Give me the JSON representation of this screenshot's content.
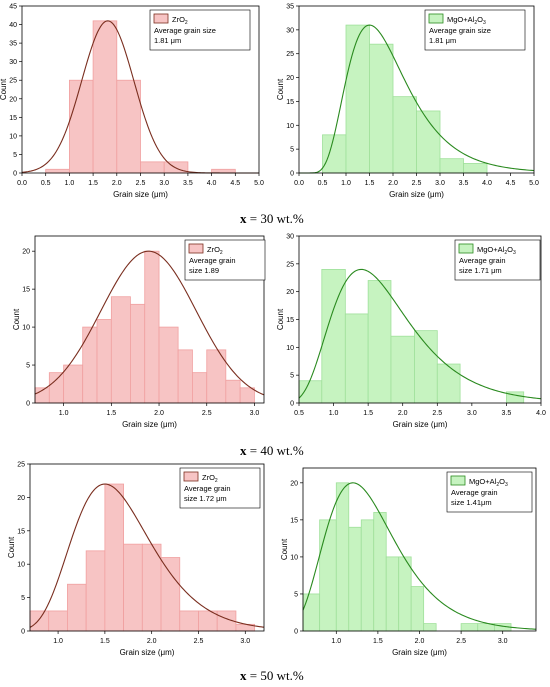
{
  "captions": [
    {
      "var": "x",
      "rest": " = 30 wt.%"
    },
    {
      "var": "x",
      "rest": " = 40 wt.%"
    },
    {
      "var": "x",
      "rest": " = 50 wt.%"
    }
  ],
  "colors": {
    "zro2_fill": "#f7c4c4",
    "zro2_edge": "#f0a0a0",
    "zro2_curve": "#7a2e1f",
    "mgo_fill": "#c6f3c0",
    "mgo_edge": "#9fe09a",
    "mgo_curve": "#2a8a1f",
    "axis": "#000000"
  },
  "chart_data": [
    {
      "type": "histogram",
      "id": "a",
      "xlabel": "Grain size (μm)",
      "ylabel": "Count",
      "xlim": [
        0,
        5.0
      ],
      "ylim": [
        0,
        45
      ],
      "xticks": [
        "0.0",
        "0.5",
        "1.0",
        "1.5",
        "2.0",
        "2.5",
        "3.0",
        "3.5",
        "4.0",
        "4.5",
        "5.0"
      ],
      "yticks": [
        "0",
        "5",
        "10",
        "15",
        "20",
        "25",
        "30",
        "35",
        "40",
        "45"
      ],
      "bin_edges": [
        0.5,
        1.0,
        1.5,
        2.0,
        2.5,
        3.0,
        3.5,
        4.0,
        4.5
      ],
      "counts": [
        1,
        25,
        41,
        25,
        3,
        3,
        0,
        1
      ],
      "fit": {
        "type": "normal",
        "mean": 1.81,
        "sd": 0.55,
        "peak": 41
      },
      "legend": {
        "series": "ZrO",
        "sub": "2",
        "lines": [
          "Average grain size",
          "1.81 μm"
        ]
      },
      "palette": "zro2"
    },
    {
      "type": "histogram",
      "id": "b",
      "xlabel": "Grain size (μm)",
      "ylabel": "Count",
      "xlim": [
        0,
        5.0
      ],
      "ylim": [
        0,
        35
      ],
      "xticks": [
        "0.0",
        "0.5",
        "1.0",
        "1.5",
        "2.0",
        "2.5",
        "3.0",
        "3.5",
        "4.0",
        "4.5",
        "5.0"
      ],
      "yticks": [
        "0",
        "5",
        "10",
        "15",
        "20",
        "25",
        "30",
        "35"
      ],
      "bin_edges": [
        0.5,
        1.0,
        1.5,
        2.0,
        2.5,
        3.0,
        3.5,
        4.0
      ],
      "counts": [
        8,
        31,
        27,
        16,
        13,
        3,
        2
      ],
      "fit": {
        "type": "lognormal",
        "mode": 1.5,
        "sigma": 0.42,
        "peak": 31
      },
      "legend": {
        "series": "MgO+Al",
        "sub": "2",
        "series2": "O",
        "sub2": "3",
        "lines": [
          "Average grain size",
          "1.81 μm"
        ]
      },
      "palette": "mgo"
    },
    {
      "type": "histogram",
      "id": "c",
      "xlabel": "Grain size (μm)",
      "ylabel": "Count",
      "xlim": [
        0.7,
        3.1
      ],
      "ylim": [
        0,
        22
      ],
      "xticks": [
        "1.0",
        "1.5",
        "2.0",
        "2.5",
        "3.0"
      ],
      "xtick_values": [
        1.0,
        1.5,
        2.0,
        2.5,
        3.0
      ],
      "yticks": [
        "0",
        "5",
        "10",
        "15",
        "20"
      ],
      "ytick_values": [
        0,
        5,
        10,
        15,
        20
      ],
      "bin_edges": [
        0.7,
        0.85,
        1.0,
        1.2,
        1.35,
        1.5,
        1.7,
        1.85,
        2.0,
        2.2,
        2.35,
        2.5,
        2.7,
        2.85,
        3.0
      ],
      "counts": [
        2,
        4,
        5,
        10,
        11,
        14,
        13,
        20,
        10,
        7,
        4,
        7,
        3,
        2
      ],
      "fit": {
        "type": "normal",
        "mean": 1.89,
        "sd": 0.5,
        "peak": 20
      },
      "legend": {
        "series": "ZrO",
        "sub": "2",
        "lines": [
          "Average grain",
          "size 1.89"
        ]
      },
      "palette": "zro2"
    },
    {
      "type": "histogram",
      "id": "d",
      "xlabel": "Grain size (μm)",
      "ylabel": "Count",
      "xlim": [
        0.5,
        4.0
      ],
      "ylim": [
        0,
        30
      ],
      "xticks": [
        "0.5",
        "1.0",
        "1.5",
        "2.0",
        "2.5",
        "3.0",
        "3.5",
        "4.0"
      ],
      "xtick_values": [
        0.5,
        1.0,
        1.5,
        2.0,
        2.5,
        3.0,
        3.5,
        4.0
      ],
      "yticks": [
        "0",
        "5",
        "10",
        "15",
        "20",
        "25",
        "30"
      ],
      "ytick_values": [
        0,
        5,
        10,
        15,
        20,
        25,
        30
      ],
      "bin_edges": [
        0.5,
        0.83,
        1.17,
        1.5,
        1.83,
        2.17,
        2.5,
        2.83,
        3.17,
        3.5,
        3.75
      ],
      "counts": [
        4,
        24,
        16,
        22,
        12,
        13,
        7,
        0,
        0,
        2
      ],
      "fit": {
        "type": "lognormal",
        "mode": 1.4,
        "sigma": 0.4,
        "peak": 24
      },
      "legend": {
        "series": "MgO+Al",
        "sub": "2",
        "series2": "O",
        "sub2": "3",
        "lines": [
          "Average grain",
          "size 1.71 μm"
        ]
      },
      "palette": "mgo"
    },
    {
      "type": "histogram",
      "id": "e",
      "xlabel": "Grain size (μm)",
      "ylabel": "Count",
      "xlim": [
        0.7,
        3.2
      ],
      "ylim": [
        0,
        25
      ],
      "xticks": [
        "1.0",
        "1.5",
        "2.0",
        "2.5",
        "3.0"
      ],
      "xtick_values": [
        1.0,
        1.5,
        2.0,
        2.5,
        3.0
      ],
      "yticks": [
        "0",
        "5",
        "10",
        "15",
        "20",
        "25"
      ],
      "ytick_values": [
        0,
        5,
        10,
        15,
        20,
        25
      ],
      "bin_edges": [
        0.7,
        0.9,
        1.1,
        1.3,
        1.5,
        1.7,
        1.9,
        2.1,
        2.3,
        2.5,
        2.7,
        2.9,
        3.1
      ],
      "counts": [
        3,
        3,
        7,
        12,
        22,
        13,
        13,
        11,
        3,
        3,
        3,
        1
      ],
      "fit": {
        "type": "lognormal",
        "mode": 1.5,
        "sigma": 0.28,
        "peak": 22
      },
      "legend": {
        "series": "ZrO",
        "sub": "2",
        "lines": [
          "Average grain",
          "size 1.72 μm"
        ]
      },
      "palette": "zro2"
    },
    {
      "type": "histogram",
      "id": "f",
      "xlabel": "Grain size (μm)",
      "ylabel": "Count",
      "xlim": [
        0.6,
        3.4
      ],
      "ylim": [
        0,
        22
      ],
      "xticks": [
        "1.0",
        "1.5",
        "2.0",
        "2.5",
        "3.0"
      ],
      "xtick_values": [
        1.0,
        1.5,
        2.0,
        2.5,
        3.0
      ],
      "yticks": [
        "0",
        "5",
        "10",
        "15",
        "20"
      ],
      "ytick_values": [
        0,
        5,
        10,
        15,
        20
      ],
      "bin_edges": [
        0.6,
        0.8,
        1.0,
        1.15,
        1.3,
        1.45,
        1.6,
        1.75,
        1.9,
        2.05,
        2.2,
        2.35,
        2.5,
        2.7,
        2.9,
        3.1
      ],
      "counts": [
        5,
        15,
        20,
        14,
        15,
        16,
        10,
        10,
        6,
        1,
        0,
        0,
        1,
        1,
        1
      ],
      "fit": {
        "type": "lognormal",
        "mode": 1.2,
        "sigma": 0.35,
        "peak": 20
      },
      "legend": {
        "series": "MgO+Al",
        "sub": "2",
        "series2": "O",
        "sub2": "3",
        "lines": [
          "Average grain",
          "size 1.41μm"
        ]
      },
      "palette": "mgo"
    }
  ]
}
